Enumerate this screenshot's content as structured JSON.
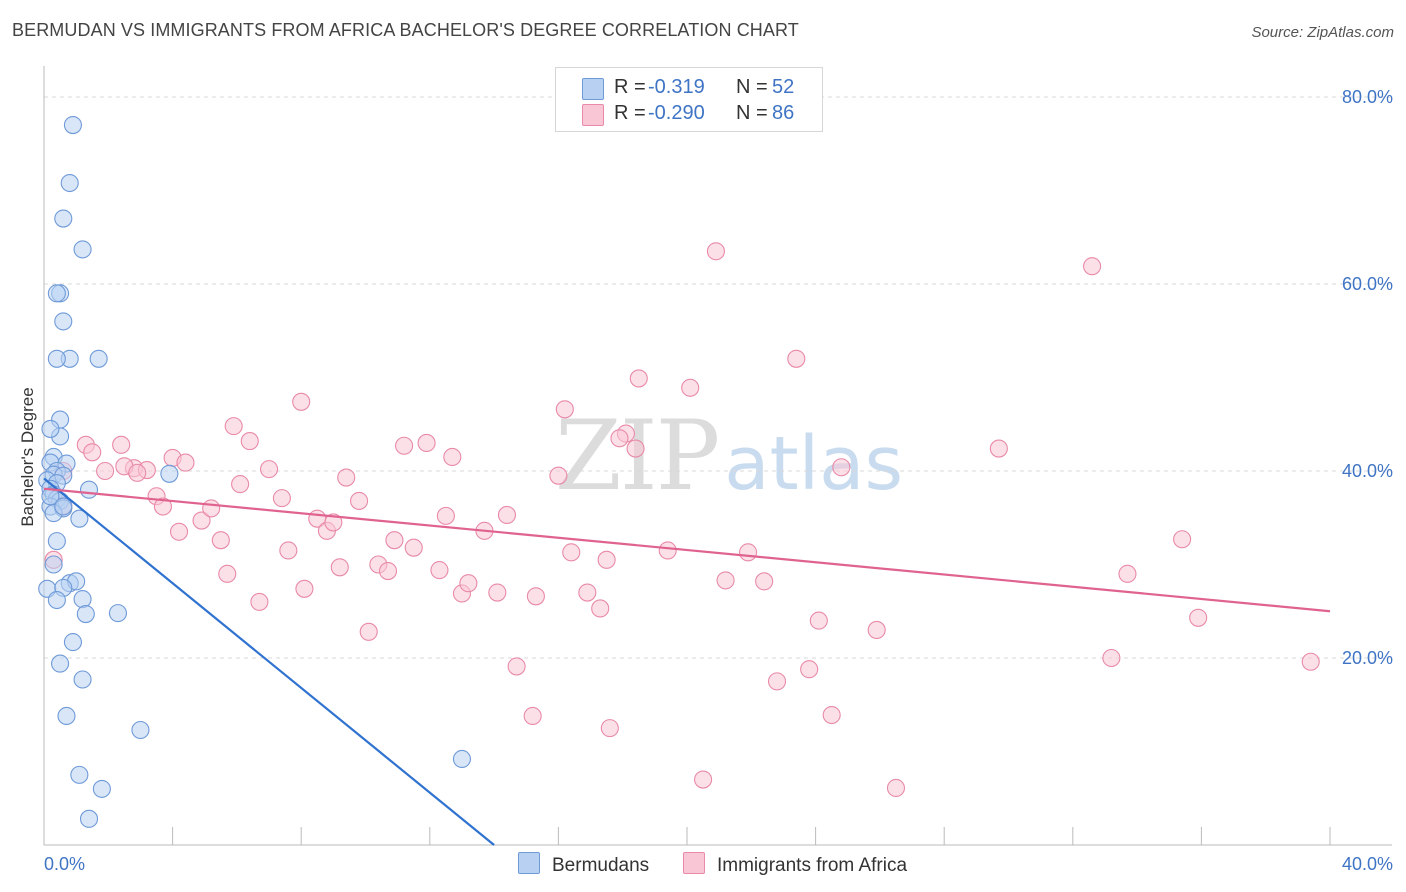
{
  "title": "BERMUDAN VS IMMIGRANTS FROM AFRICA BACHELOR'S DEGREE CORRELATION CHART",
  "source": "Source: ZipAtlas.com",
  "watermark": {
    "zip": "ZIP",
    "atlas": "atlas"
  },
  "legend": {
    "rows": [
      {
        "r_label": "R =",
        "r_value": "-0.319",
        "n_label": "N =",
        "n_value": "52",
        "color": "#b8d1f2",
        "border": "#6f9ad8"
      },
      {
        "r_label": "R =",
        "r_value": "-0.290",
        "n_label": "N =",
        "n_value": "86",
        "color": "#f9c6d5",
        "border": "#e88aa8"
      }
    ]
  },
  "bottom_legend": {
    "bermudans": "Bermudans",
    "africa": "Immigrants from Africa"
  },
  "chart_data": {
    "type": "scatter",
    "title": "BERMUDAN VS IMMIGRANTS FROM AFRICA BACHELOR'S DEGREE CORRELATION CHART",
    "xlabel": "",
    "ylabel": "Bachelor's Degree",
    "xlim": [
      0,
      40
    ],
    "ylim": [
      0,
      80
    ],
    "x_tick_labels": [
      "0.0%",
      "40.0%"
    ],
    "y_ticks": [
      20,
      40,
      60,
      80
    ],
    "y_tick_labels": [
      "20.0%",
      "40.0%",
      "60.0%",
      "80.0%"
    ],
    "grid": true,
    "series": [
      {
        "name": "Bermudans",
        "color": "#6f9ad8",
        "fill": "#b8d1f2",
        "trendline": {
          "x": [
            0.0,
            14.0
          ],
          "y": [
            39.2,
            0.0
          ],
          "color": "#2f72d0"
        },
        "points": [
          [
            0.9,
            77.0
          ],
          [
            0.8,
            70.8
          ],
          [
            0.6,
            67.0
          ],
          [
            1.2,
            63.7
          ],
          [
            0.5,
            59.0
          ],
          [
            0.4,
            59.0
          ],
          [
            0.6,
            56.0
          ],
          [
            0.8,
            52.0
          ],
          [
            0.4,
            52.0
          ],
          [
            1.7,
            52.0
          ],
          [
            0.5,
            45.5
          ],
          [
            0.5,
            43.7
          ],
          [
            0.2,
            44.5
          ],
          [
            0.3,
            41.5
          ],
          [
            0.2,
            40.9
          ],
          [
            0.7,
            40.8
          ],
          [
            0.4,
            40.0
          ],
          [
            0.3,
            39.6
          ],
          [
            0.6,
            39.5
          ],
          [
            0.1,
            39.0
          ],
          [
            0.4,
            38.7
          ],
          [
            1.4,
            38.0
          ],
          [
            0.2,
            38.1
          ],
          [
            0.3,
            37.5
          ],
          [
            0.4,
            37.0
          ],
          [
            0.5,
            36.8
          ],
          [
            0.2,
            36.2
          ],
          [
            0.6,
            36.0
          ],
          [
            0.3,
            35.5
          ],
          [
            1.1,
            34.9
          ],
          [
            0.4,
            32.5
          ],
          [
            3.9,
            39.7
          ],
          [
            0.3,
            30.0
          ],
          [
            0.1,
            27.4
          ],
          [
            0.8,
            28.0
          ],
          [
            1.0,
            28.2
          ],
          [
            0.6,
            27.5
          ],
          [
            0.4,
            26.2
          ],
          [
            1.2,
            26.3
          ],
          [
            2.3,
            24.8
          ],
          [
            1.3,
            24.7
          ],
          [
            0.9,
            21.7
          ],
          [
            0.5,
            19.4
          ],
          [
            1.2,
            17.7
          ],
          [
            0.7,
            13.8
          ],
          [
            3.0,
            12.3
          ],
          [
            1.1,
            7.5
          ],
          [
            1.8,
            6.0
          ],
          [
            13.0,
            9.2
          ],
          [
            1.4,
            2.8
          ],
          [
            0.2,
            37.3
          ],
          [
            0.6,
            36.2
          ]
        ]
      },
      {
        "name": "Immigrants from Africa",
        "color": "#e88aa8",
        "fill": "#f9c6d5",
        "trendline": {
          "x": [
            0.0,
            40.0
          ],
          "y": [
            38.1,
            25.0
          ],
          "color": "#e0628f"
        },
        "points": [
          [
            0.6,
            40.0
          ],
          [
            0.3,
            30.5
          ],
          [
            0.6,
            36.3
          ],
          [
            1.3,
            42.8
          ],
          [
            1.5,
            42.0
          ],
          [
            2.4,
            42.8
          ],
          [
            1.9,
            40.0
          ],
          [
            2.8,
            40.3
          ],
          [
            3.2,
            40.1
          ],
          [
            2.5,
            40.5
          ],
          [
            2.9,
            39.8
          ],
          [
            4.0,
            41.4
          ],
          [
            4.4,
            40.9
          ],
          [
            3.5,
            37.3
          ],
          [
            3.7,
            36.2
          ],
          [
            4.2,
            33.5
          ],
          [
            4.9,
            34.7
          ],
          [
            5.2,
            36.0
          ],
          [
            5.5,
            32.6
          ],
          [
            5.7,
            29.0
          ],
          [
            6.1,
            38.6
          ],
          [
            5.9,
            44.8
          ],
          [
            6.4,
            43.2
          ],
          [
            7.0,
            40.2
          ],
          [
            6.7,
            26.0
          ],
          [
            7.4,
            37.1
          ],
          [
            7.6,
            31.5
          ],
          [
            8.0,
            47.4
          ],
          [
            8.1,
            27.4
          ],
          [
            8.5,
            34.9
          ],
          [
            8.8,
            33.6
          ],
          [
            9.0,
            34.5
          ],
          [
            9.2,
            29.7
          ],
          [
            9.4,
            39.3
          ],
          [
            9.8,
            36.8
          ],
          [
            10.1,
            22.8
          ],
          [
            10.4,
            30.0
          ],
          [
            10.7,
            29.3
          ],
          [
            10.9,
            32.6
          ],
          [
            11.2,
            42.7
          ],
          [
            11.5,
            31.8
          ],
          [
            11.9,
            43.0
          ],
          [
            12.3,
            29.4
          ],
          [
            12.5,
            35.2
          ],
          [
            12.7,
            41.5
          ],
          [
            13.0,
            26.9
          ],
          [
            13.2,
            28.0
          ],
          [
            13.7,
            33.6
          ],
          [
            14.1,
            27.0
          ],
          [
            14.4,
            35.3
          ],
          [
            14.7,
            19.1
          ],
          [
            15.2,
            13.8
          ],
          [
            15.3,
            26.6
          ],
          [
            16.0,
            39.5
          ],
          [
            16.2,
            46.6
          ],
          [
            16.4,
            31.3
          ],
          [
            16.9,
            27.0
          ],
          [
            17.3,
            25.3
          ],
          [
            17.5,
            30.5
          ],
          [
            17.6,
            12.5
          ],
          [
            18.1,
            44.0
          ],
          [
            18.4,
            42.4
          ],
          [
            18.5,
            49.9
          ],
          [
            17.9,
            43.5
          ],
          [
            19.4,
            31.5
          ],
          [
            20.1,
            48.9
          ],
          [
            20.5,
            7.0
          ],
          [
            20.9,
            63.5
          ],
          [
            21.2,
            28.3
          ],
          [
            21.9,
            31.3
          ],
          [
            22.4,
            28.2
          ],
          [
            22.8,
            17.5
          ],
          [
            23.4,
            52.0
          ],
          [
            23.8,
            18.8
          ],
          [
            24.1,
            24.0
          ],
          [
            24.5,
            13.9
          ],
          [
            24.8,
            40.4
          ],
          [
            25.9,
            23.0
          ],
          [
            26.5,
            6.1
          ],
          [
            29.7,
            42.4
          ],
          [
            32.6,
            61.9
          ],
          [
            33.2,
            20.0
          ],
          [
            33.7,
            29.0
          ],
          [
            35.4,
            32.7
          ],
          [
            35.9,
            24.3
          ],
          [
            39.4,
            19.6
          ]
        ]
      }
    ]
  }
}
